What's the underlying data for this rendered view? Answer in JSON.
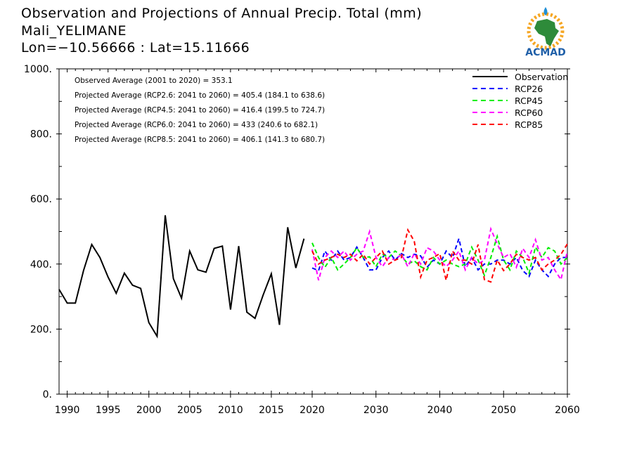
{
  "header": {
    "title": "Observation and Projections of Annual Precip. Total (mm)",
    "location": "Mali_YELIMANE",
    "coords": "Lon=−10.56666 : Lat=15.11666"
  },
  "logo": {
    "text": "ACMAD",
    "brand_color": "#1f5fa8"
  },
  "chart_data": {
    "type": "line",
    "title": "Observation and Projections of Annual Precip. Total (mm)",
    "xlabel": "",
    "ylabel": "",
    "xlim": [
      1989,
      2060
    ],
    "ylim": [
      0,
      1000
    ],
    "grid": false,
    "legend_placement": "top-right",
    "y_ticks": [
      0,
      200,
      400,
      600,
      800,
      1000
    ],
    "y_tick_labels": [
      "0.",
      "200.",
      "400.",
      "600.",
      "800.",
      "1000."
    ],
    "x_ticks": [
      1990,
      1995,
      2000,
      2005,
      2010,
      2015,
      2020,
      2030,
      2040,
      2050,
      2060
    ],
    "x_tick_labels": [
      "1990",
      "1995",
      "2000",
      "2005",
      "2010",
      "2015",
      "2020",
      "2030",
      "2040",
      "2050",
      "2060"
    ],
    "annotations": [
      "Observed Average (2001 to 2020) = 353.1",
      "Projected Average (RCP2.6: 2041 to 2060) = 405.4 (184.1 to 638.6)",
      "Projected Average (RCP4.5: 2041 to 2060) = 416.4 (199.5 to 724.7)",
      "Projected Average (RCP6.0: 2041 to 2060) = 433 (240.6 to 682.1)",
      "Projected Average (RCP8.5: 2041 to 2060) = 406.1 (141.3 to 680.7)"
    ],
    "series": [
      {
        "name": "Observation",
        "color": "#000000",
        "dash": "solid",
        "x": [
          1989,
          1990,
          1991,
          1992,
          1993,
          1994,
          1995,
          1996,
          1997,
          1998,
          1999,
          2000,
          2001,
          2002,
          2003,
          2004,
          2005,
          2006,
          2007,
          2008,
          2009,
          2010,
          2011,
          2012,
          2013,
          2014,
          2015,
          2016,
          2017,
          2018,
          2019
        ],
        "values": [
          322,
          280,
          280,
          380,
          460,
          420,
          360,
          310,
          372,
          335,
          325,
          220,
          178,
          550,
          355,
          295,
          440,
          382,
          375,
          448,
          455,
          260,
          455,
          252,
          233,
          305,
          370,
          213,
          513,
          388,
          478
        ]
      },
      {
        "name": "RCP26",
        "color": "#0000ff",
        "dash": "dashed",
        "x": [
          2020,
          2021,
          2022,
          2023,
          2024,
          2025,
          2026,
          2027,
          2028,
          2029,
          2030,
          2031,
          2032,
          2033,
          2034,
          2035,
          2036,
          2037,
          2038,
          2039,
          2040,
          2041,
          2042,
          2043,
          2044,
          2045,
          2046,
          2047,
          2048,
          2049,
          2050,
          2051,
          2052,
          2053,
          2054,
          2055,
          2056,
          2057,
          2058,
          2059,
          2060
        ],
        "values": [
          388,
          380,
          440,
          412,
          440,
          412,
          420,
          452,
          420,
          382,
          382,
          420,
          440,
          412,
          432,
          420,
          430,
          425,
          390,
          412,
          400,
          440,
          420,
          478,
          392,
          420,
          382,
          400,
          400,
          412,
          412,
          400,
          420,
          380,
          362,
          412,
          382,
          362,
          400,
          420,
          420
        ]
      },
      {
        "name": "RCP45",
        "color": "#00ee00",
        "dash": "dashed",
        "x": [
          2020,
          2021,
          2022,
          2023,
          2024,
          2025,
          2026,
          2027,
          2028,
          2029,
          2030,
          2031,
          2032,
          2033,
          2034,
          2035,
          2036,
          2037,
          2038,
          2039,
          2040,
          2041,
          2042,
          2043,
          2044,
          2045,
          2046,
          2047,
          2048,
          2049,
          2050,
          2051,
          2052,
          2053,
          2054,
          2055,
          2056,
          2057,
          2058,
          2059,
          2060
        ],
        "values": [
          465,
          420,
          390,
          420,
          382,
          400,
          420,
          450,
          420,
          422,
          392,
          430,
          420,
          440,
          425,
          400,
          410,
          392,
          382,
          420,
          400,
          412,
          400,
          392,
          400,
          452,
          412,
          365,
          420,
          485,
          412,
          382,
          440,
          420,
          372,
          452,
          420,
          450,
          440,
          400,
          420
        ]
      },
      {
        "name": "RCP60",
        "color": "#ff00ff",
        "dash": "dashed",
        "x": [
          2020,
          2021,
          2022,
          2023,
          2024,
          2025,
          2026,
          2027,
          2028,
          2029,
          2030,
          2031,
          2032,
          2033,
          2034,
          2035,
          2036,
          2037,
          2038,
          2039,
          2040,
          2041,
          2042,
          2043,
          2044,
          2045,
          2046,
          2047,
          2048,
          2049,
          2050,
          2051,
          2052,
          2053,
          2054,
          2055,
          2056,
          2057,
          2058,
          2059,
          2060
        ],
        "values": [
          445,
          350,
          420,
          440,
          420,
          440,
          412,
          430,
          440,
          500,
          420,
          392,
          420,
          412,
          430,
          392,
          432,
          400,
          450,
          440,
          412,
          392,
          412,
          440,
          382,
          420,
          400,
          412,
          508,
          462,
          420,
          432,
          390,
          448,
          420,
          475,
          412,
          420,
          382,
          352,
          440
        ]
      },
      {
        "name": "RCP85",
        "color": "#ff0000",
        "dash": "dashed",
        "x": [
          2020,
          2021,
          2022,
          2023,
          2024,
          2025,
          2026,
          2027,
          2028,
          2029,
          2030,
          2031,
          2032,
          2033,
          2034,
          2035,
          2036,
          2037,
          2038,
          2039,
          2040,
          2041,
          2042,
          2043,
          2044,
          2045,
          2046,
          2047,
          2048,
          2049,
          2050,
          2051,
          2052,
          2053,
          2054,
          2055,
          2056,
          2057,
          2058,
          2059,
          2060
        ],
        "values": [
          440,
          400,
          412,
          420,
          430,
          420,
          430,
          410,
          430,
          400,
          420,
          440,
          400,
          412,
          420,
          505,
          470,
          360,
          412,
          420,
          432,
          350,
          440,
          412,
          412,
          400,
          460,
          352,
          345,
          412,
          380,
          400,
          430,
          420,
          412,
          420,
          382,
          400,
          412,
          430,
          462
        ]
      }
    ]
  }
}
